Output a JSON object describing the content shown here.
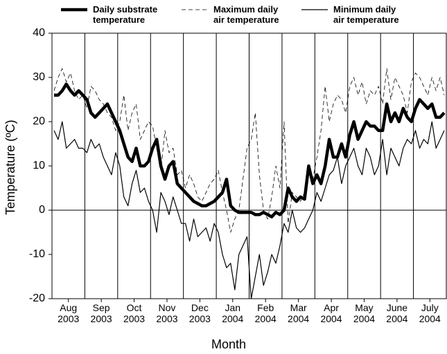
{
  "chart_data": {
    "type": "line",
    "x_label": "Month",
    "y_label": "Temperature (ºC)",
    "categories": [
      "Aug\n2003",
      "Sep\n2003",
      "Oct\n2003",
      "Nov\n2003",
      "Dec\n2003",
      "Jan\n2004",
      "Feb\n2004",
      "Mar\n2004",
      "Apr\n2004",
      "May\n2004",
      "June\n2004",
      "July\n2004"
    ],
    "ylim": [
      -20,
      40
    ],
    "yticks": [
      -20,
      -10,
      0,
      10,
      20,
      30,
      40
    ],
    "series": [
      {
        "name": "Daily substrate\ntemperature",
        "color": "#000000",
        "line_style": "thick",
        "values": [
          [
            26,
            26,
            27,
            28.5,
            27,
            26,
            27,
            26
          ],
          [
            25,
            22,
            21,
            22,
            23,
            24,
            22,
            20
          ],
          [
            18,
            15,
            12,
            11,
            14,
            10,
            10,
            11
          ],
          [
            14,
            16,
            10,
            7,
            10,
            11,
            6,
            5
          ],
          [
            4,
            3,
            2,
            1.5,
            1,
            1,
            1.5,
            2
          ],
          [
            3,
            4,
            7,
            1,
            0,
            -0.5,
            -0.5,
            -0.5
          ],
          [
            -0.5,
            -1,
            -1,
            -0.5,
            -1,
            -1.5,
            -0.5,
            -1
          ],
          [
            0,
            5,
            3,
            2,
            3,
            2.5,
            10,
            6
          ],
          [
            8,
            6,
            10,
            16,
            12,
            12,
            15,
            12
          ],
          [
            17,
            20,
            16,
            18,
            20,
            19,
            19,
            18
          ],
          [
            18,
            24,
            20,
            22,
            20,
            23,
            21,
            20
          ],
          [
            23,
            25,
            24,
            23,
            24,
            21,
            21,
            22
          ]
        ]
      },
      {
        "name": "Maximum daily\nair temperature",
        "color": "#000000",
        "line_style": "dashed",
        "values": [
          [
            27,
            30,
            32,
            29,
            31,
            27,
            25,
            26
          ],
          [
            23,
            28,
            27,
            25,
            24,
            22,
            21,
            18
          ],
          [
            20,
            26,
            18,
            22,
            24,
            16,
            18,
            20
          ],
          [
            19,
            14,
            9,
            18,
            13,
            14,
            8,
            9
          ],
          [
            5,
            8,
            6,
            3,
            2,
            4,
            6,
            7
          ],
          [
            9,
            4,
            0,
            -5,
            -2,
            0,
            7,
            14
          ],
          [
            16,
            22,
            8,
            0,
            -2,
            3,
            10,
            5
          ],
          [
            20,
            -3,
            4,
            3,
            2,
            4,
            9,
            7
          ],
          [
            12,
            18,
            28,
            20,
            24,
            26,
            25,
            22
          ],
          [
            28,
            30,
            26,
            29,
            24,
            27,
            26,
            28
          ],
          [
            24,
            32,
            25,
            30,
            28,
            26,
            22,
            29
          ],
          [
            31,
            30,
            28,
            26,
            30,
            27,
            30,
            26
          ]
        ]
      },
      {
        "name": "Minimum daily\nair temperature",
        "color": "#000000",
        "line_style": "solid",
        "values": [
          [
            18,
            16,
            20,
            14,
            15,
            16,
            14,
            14
          ],
          [
            13,
            16,
            14,
            15,
            12,
            10,
            8,
            13
          ],
          [
            10,
            3,
            1,
            6,
            9,
            4,
            5,
            2
          ],
          [
            0,
            -5,
            4,
            2,
            -1,
            3,
            0,
            -3
          ],
          [
            -3,
            -7,
            -2,
            -6,
            -5,
            -4,
            -7,
            -3
          ],
          [
            -5,
            -10,
            -13,
            -12,
            -18,
            -10,
            -8,
            -6
          ],
          [
            -20,
            -15,
            -10,
            -17,
            -14,
            -10,
            -12,
            -8
          ],
          [
            -3,
            -5,
            0,
            -4,
            -5,
            -4,
            -2,
            0
          ],
          [
            4,
            2,
            5,
            8,
            9,
            12,
            6,
            10
          ],
          [
            12,
            14,
            10,
            8,
            14,
            12,
            8,
            10
          ],
          [
            16,
            8,
            14,
            12,
            10,
            14,
            16,
            15
          ],
          [
            18,
            14,
            16,
            15,
            20,
            14,
            16,
            18
          ]
        ]
      }
    ]
  }
}
